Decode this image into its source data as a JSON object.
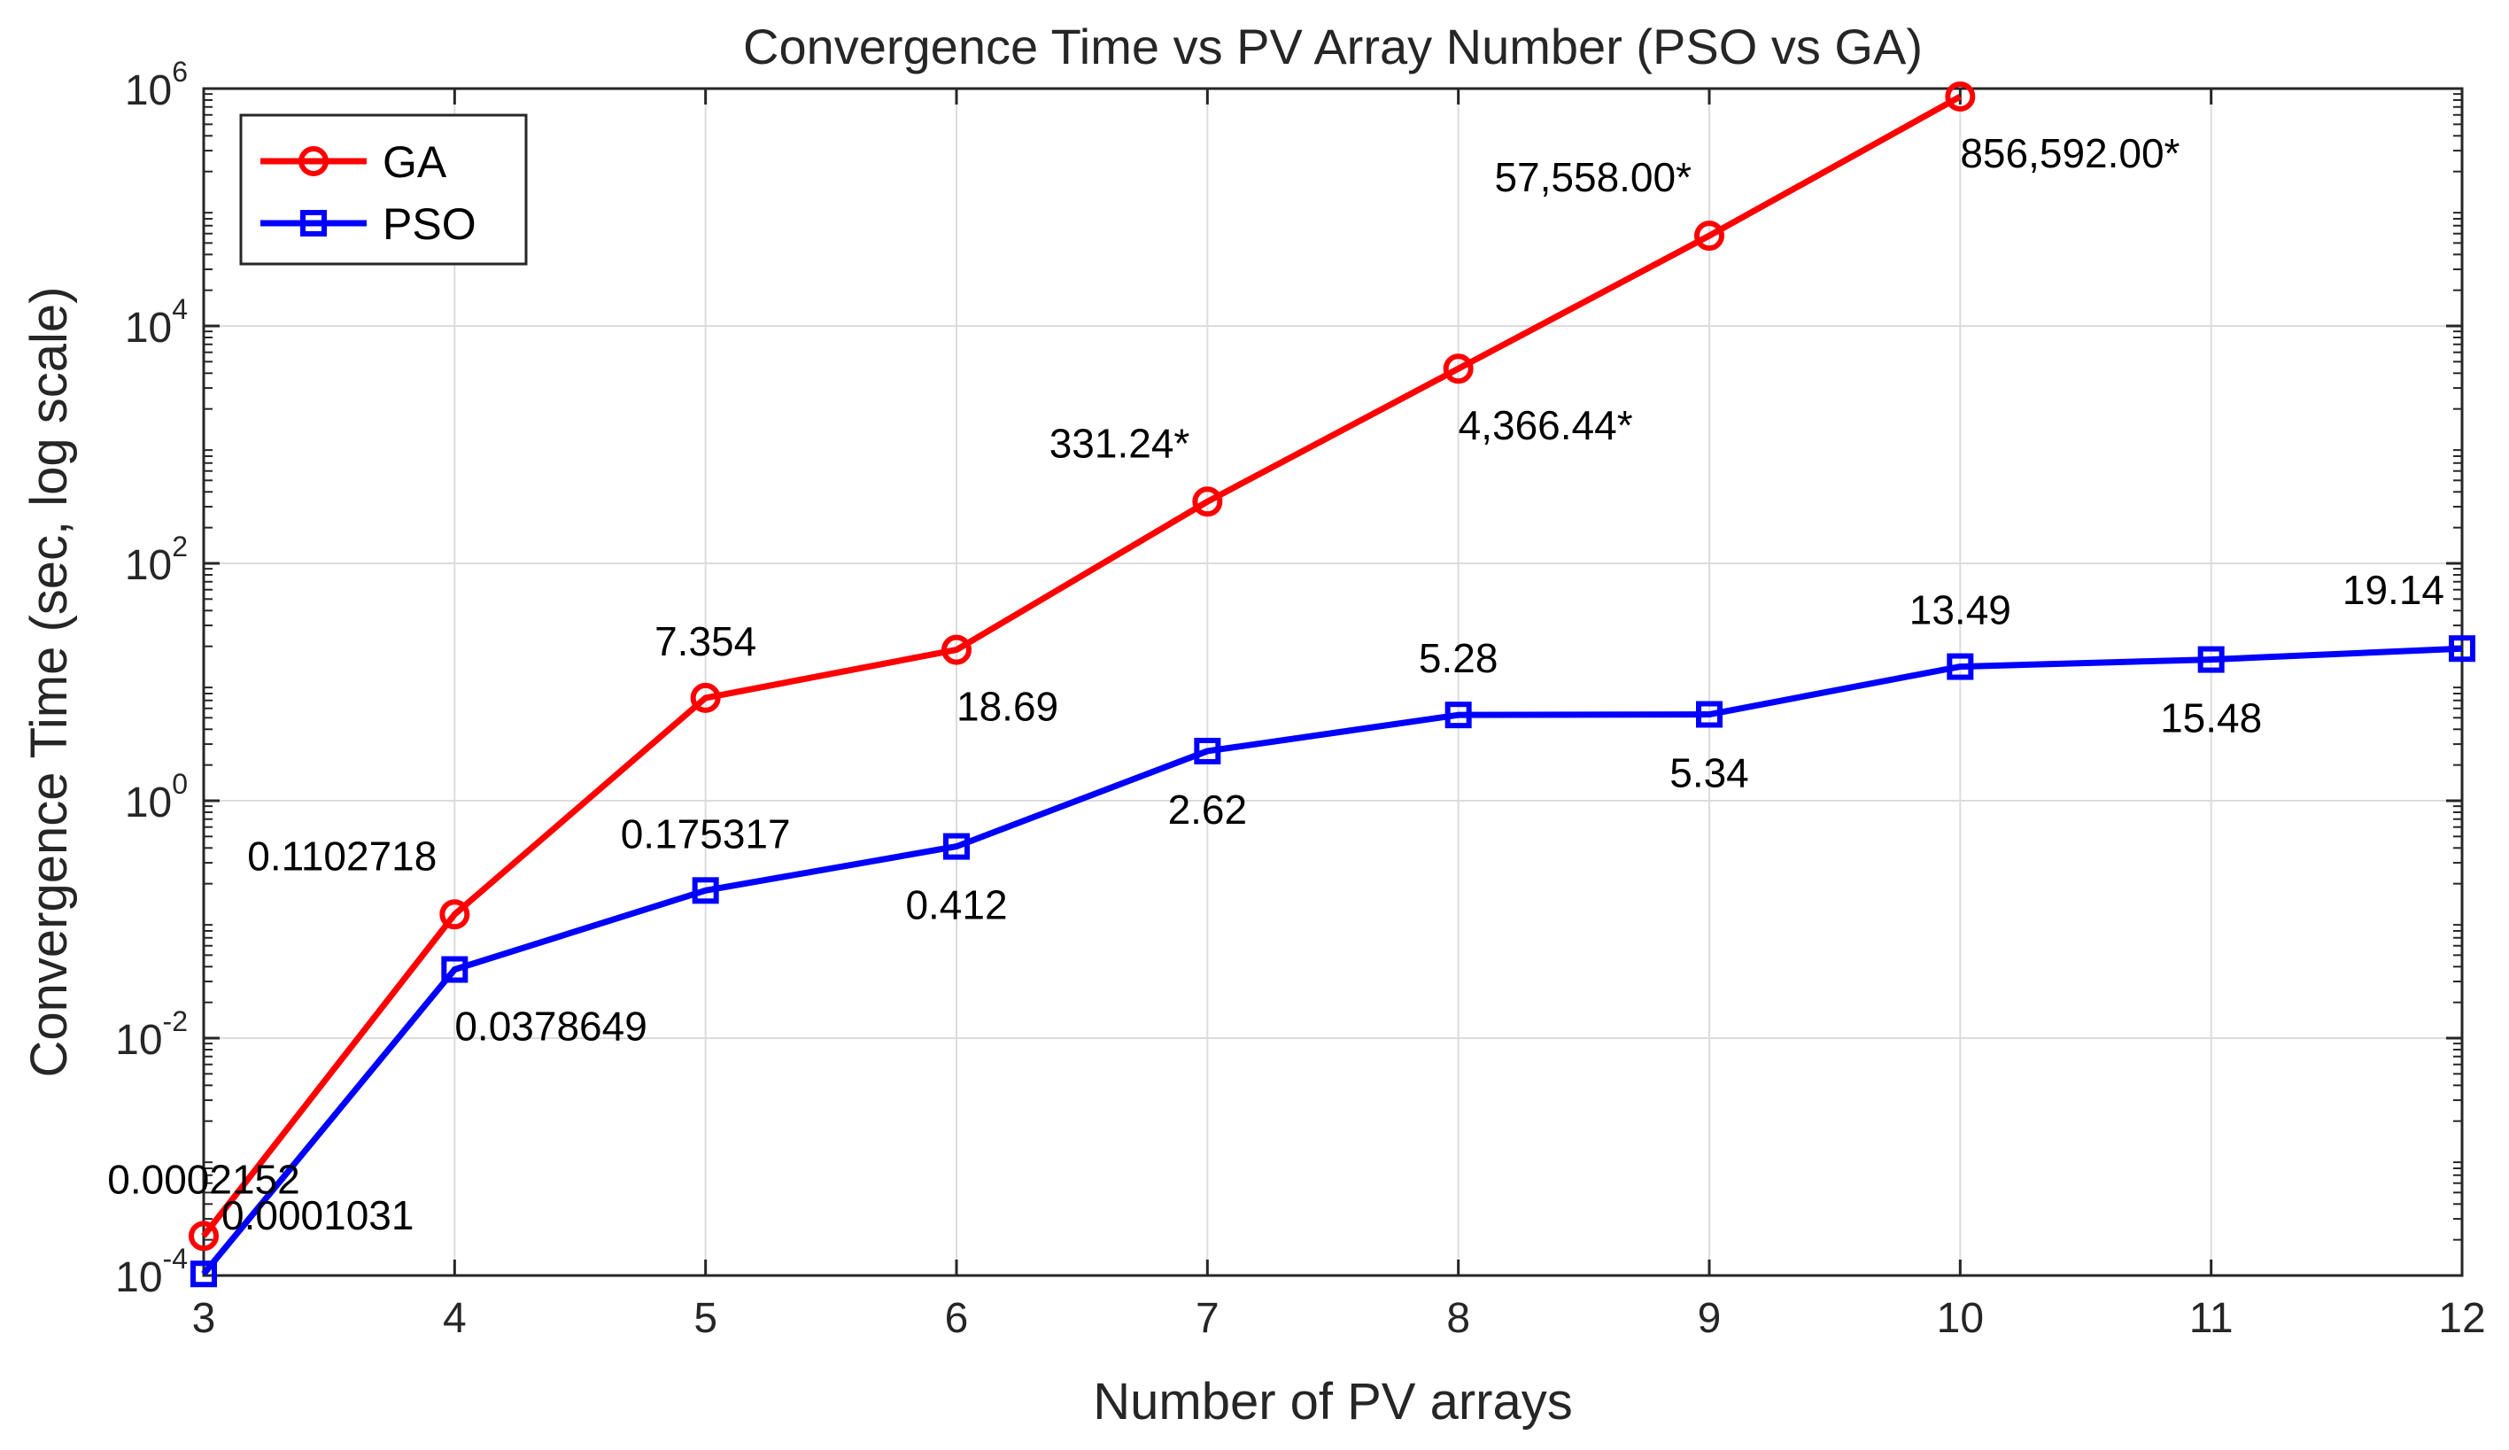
{
  "chart_data": {
    "type": "line",
    "title": "Convergence Time vs PV Array Number (PSO vs GA)",
    "xlabel": "Number of PV arrays",
    "ylabel": "Convergence Time (sec, log scale)",
    "x": [
      3,
      4,
      5,
      6,
      7,
      8,
      9,
      10,
      11,
      12
    ],
    "xlim": [
      3,
      12
    ],
    "ylim": [
      0.0001,
      1000000
    ],
    "yscale": "log",
    "grid": true,
    "legend_position": "top-left",
    "xticks": [
      "3",
      "4",
      "5",
      "6",
      "7",
      "8",
      "9",
      "10",
      "11",
      "12"
    ],
    "yticks": [
      {
        "value": 0.0001,
        "base": "10",
        "exp": "-4"
      },
      {
        "value": 0.01,
        "base": "10",
        "exp": "-2"
      },
      {
        "value": 1,
        "base": "10",
        "exp": "0"
      },
      {
        "value": 100,
        "base": "10",
        "exp": "2"
      },
      {
        "value": 10000,
        "base": "10",
        "exp": "4"
      },
      {
        "value": 1000000,
        "base": "10",
        "exp": "6"
      }
    ],
    "series": [
      {
        "name": "GA",
        "color": "#ff0000",
        "marker": "circle",
        "x": [
          3,
          4,
          5,
          6,
          7,
          8,
          9,
          10
        ],
        "values": [
          0.0002152,
          0.1102718,
          7.354,
          18.69,
          331.24,
          4366.44,
          57558.0,
          856592.0
        ],
        "labels": [
          {
            "text": "0.0002152",
            "pos": "above"
          },
          {
            "text": "0.1102718",
            "pos": "above-left"
          },
          {
            "text": "7.354",
            "pos": "above"
          },
          {
            "text": "18.69",
            "pos": "below-right"
          },
          {
            "text": "331.24*",
            "pos": "above-left"
          },
          {
            "text": "4,366.44*",
            "pos": "below-right"
          },
          {
            "text": "57,558.00*",
            "pos": "above-left"
          },
          {
            "text": "856,592.00*",
            "pos": "below-right"
          }
        ]
      },
      {
        "name": "PSO",
        "color": "#0000ff",
        "marker": "square",
        "x": [
          3,
          4,
          5,
          6,
          7,
          8,
          9,
          10,
          11,
          12
        ],
        "values": [
          0.0001031,
          0.0378649,
          0.175317,
          0.412,
          2.62,
          5.28,
          5.34,
          13.49,
          15.48,
          19.14
        ],
        "labels": [
          {
            "text": "0.0001031",
            "pos": "above-right"
          },
          {
            "text": "0.0378649",
            "pos": "below-right"
          },
          {
            "text": "0.175317",
            "pos": "above"
          },
          {
            "text": "0.412",
            "pos": "below"
          },
          {
            "text": "2.62",
            "pos": "below"
          },
          {
            "text": "5.28",
            "pos": "above"
          },
          {
            "text": "5.34",
            "pos": "below"
          },
          {
            "text": "13.49",
            "pos": "above"
          },
          {
            "text": "15.48",
            "pos": "below"
          },
          {
            "text": "19.14",
            "pos": "above-left"
          }
        ]
      }
    ]
  }
}
